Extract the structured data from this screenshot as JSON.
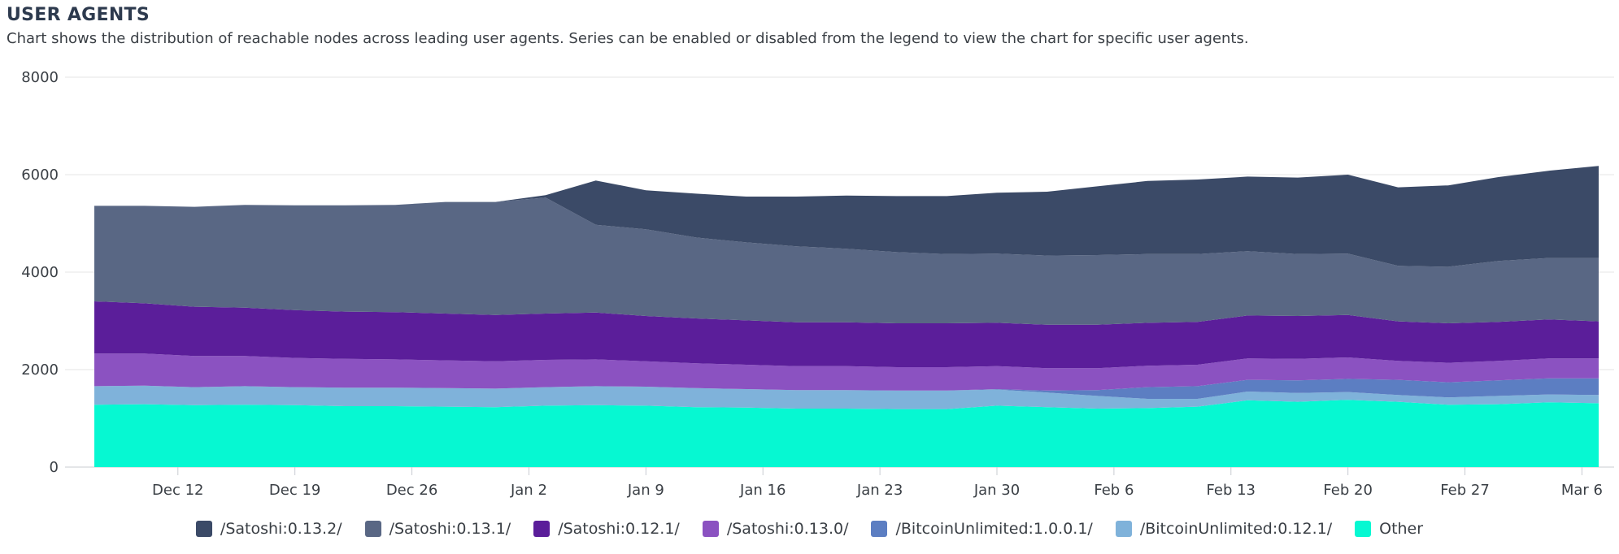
{
  "header": {
    "title": "USER AGENTS",
    "subtitle": "Chart shows the distribution of reachable nodes across leading user agents. Series can be enabled or disabled from the legend to view the chart for specific user agents."
  },
  "chart_data": {
    "type": "area",
    "stacked": true,
    "ylim": [
      0,
      8000
    ],
    "yticks": [
      "0",
      "2000",
      "4000",
      "6000",
      "8000"
    ],
    "xticks": [
      "Dec 12",
      "Dec 19",
      "Dec 26",
      "Jan 2",
      "Jan 9",
      "Jan 16",
      "Jan 23",
      "Jan 30",
      "Feb 6",
      "Feb 13",
      "Feb 20",
      "Feb 27",
      "Mar 6"
    ],
    "x_domain": [
      "Dec 7",
      "Mar 7"
    ],
    "x": [
      "Dec 7",
      "Dec 10",
      "Dec 13",
      "Dec 16",
      "Dec 19",
      "Dec 22",
      "Dec 25",
      "Dec 28",
      "Dec 31",
      "Jan 3",
      "Jan 6",
      "Jan 9",
      "Jan 12",
      "Jan 15",
      "Jan 18",
      "Jan 21",
      "Jan 24",
      "Jan 27",
      "Jan 30",
      "Feb 2",
      "Feb 5",
      "Feb 8",
      "Feb 11",
      "Feb 14",
      "Feb 17",
      "Feb 20",
      "Feb 23",
      "Feb 26",
      "Mar 1",
      "Mar 4",
      "Mar 7"
    ],
    "grid": true,
    "legend_position": "bottom",
    "series": [
      {
        "name": "Other",
        "color": "#06f8d2",
        "values": [
          1280,
          1290,
          1270,
          1280,
          1270,
          1250,
          1250,
          1240,
          1230,
          1260,
          1270,
          1260,
          1230,
          1220,
          1200,
          1200,
          1190,
          1190,
          1260,
          1230,
          1200,
          1210,
          1240,
          1370,
          1340,
          1380,
          1340,
          1280,
          1290,
          1330,
          1310
        ]
      },
      {
        "name": "/BitcoinUnlimited:0.12.1/",
        "color": "#7fb2da",
        "values": [
          380,
          380,
          370,
          380,
          370,
          380,
          380,
          380,
          380,
          380,
          390,
          390,
          390,
          380,
          380,
          380,
          380,
          380,
          330,
          300,
          260,
          190,
          160,
          180,
          180,
          160,
          140,
          150,
          170,
          160,
          170
        ]
      },
      {
        "name": "/BitcoinUnlimited:1.0.0.1/",
        "color": "#5c7ec2",
        "values": [
          0,
          0,
          0,
          0,
          0,
          0,
          0,
          0,
          0,
          0,
          0,
          0,
          0,
          0,
          0,
          0,
          0,
          0,
          10,
          40,
          120,
          240,
          260,
          240,
          260,
          270,
          310,
          310,
          320,
          330,
          340
        ]
      },
      {
        "name": "/Satoshi:0.13.0/",
        "color": "#8b52c1",
        "values": [
          670,
          660,
          640,
          620,
          600,
          590,
          580,
          570,
          560,
          560,
          550,
          520,
          510,
          500,
          490,
          490,
          480,
          480,
          470,
          460,
          450,
          440,
          440,
          440,
          440,
          440,
          390,
          400,
          400,
          410,
          410
        ]
      },
      {
        "name": "/Satoshi:0.12.1/",
        "color": "#5b1e9a",
        "values": [
          1070,
          1030,
          1010,
          990,
          980,
          970,
          970,
          960,
          950,
          950,
          960,
          930,
          920,
          910,
          900,
          900,
          900,
          900,
          890,
          890,
          890,
          880,
          880,
          880,
          880,
          870,
          810,
          810,
          800,
          800,
          760
        ]
      },
      {
        "name": "/Satoshi:0.13.1/",
        "color": "#596784",
        "values": [
          1960,
          2000,
          2050,
          2110,
          2150,
          2180,
          2200,
          2290,
          2320,
          2380,
          1800,
          1780,
          1660,
          1600,
          1560,
          1510,
          1460,
          1420,
          1420,
          1420,
          1430,
          1410,
          1390,
          1320,
          1270,
          1260,
          1140,
          1160,
          1250,
          1260,
          1300
        ]
      },
      {
        "name": "/Satoshi:0.13.2/",
        "color": "#3b4a67",
        "values": [
          0,
          0,
          0,
          0,
          0,
          0,
          0,
          0,
          0,
          50,
          910,
          800,
          900,
          940,
          1020,
          1090,
          1150,
          1190,
          1250,
          1310,
          1410,
          1500,
          1530,
          1530,
          1570,
          1620,
          1610,
          1670,
          1720,
          1790,
          1890
        ]
      }
    ]
  },
  "legend": [
    {
      "label": "/Satoshi:0.13.2/",
      "color": "#3b4a67"
    },
    {
      "label": "/Satoshi:0.13.1/",
      "color": "#596784"
    },
    {
      "label": "/Satoshi:0.12.1/",
      "color": "#5b1e9a"
    },
    {
      "label": "/Satoshi:0.13.0/",
      "color": "#8b52c1"
    },
    {
      "label": "/BitcoinUnlimited:1.0.0.1/",
      "color": "#5c7ec2"
    },
    {
      "label": "/BitcoinUnlimited:0.12.1/",
      "color": "#7fb2da"
    },
    {
      "label": "Other",
      "color": "#06f8d2"
    }
  ]
}
